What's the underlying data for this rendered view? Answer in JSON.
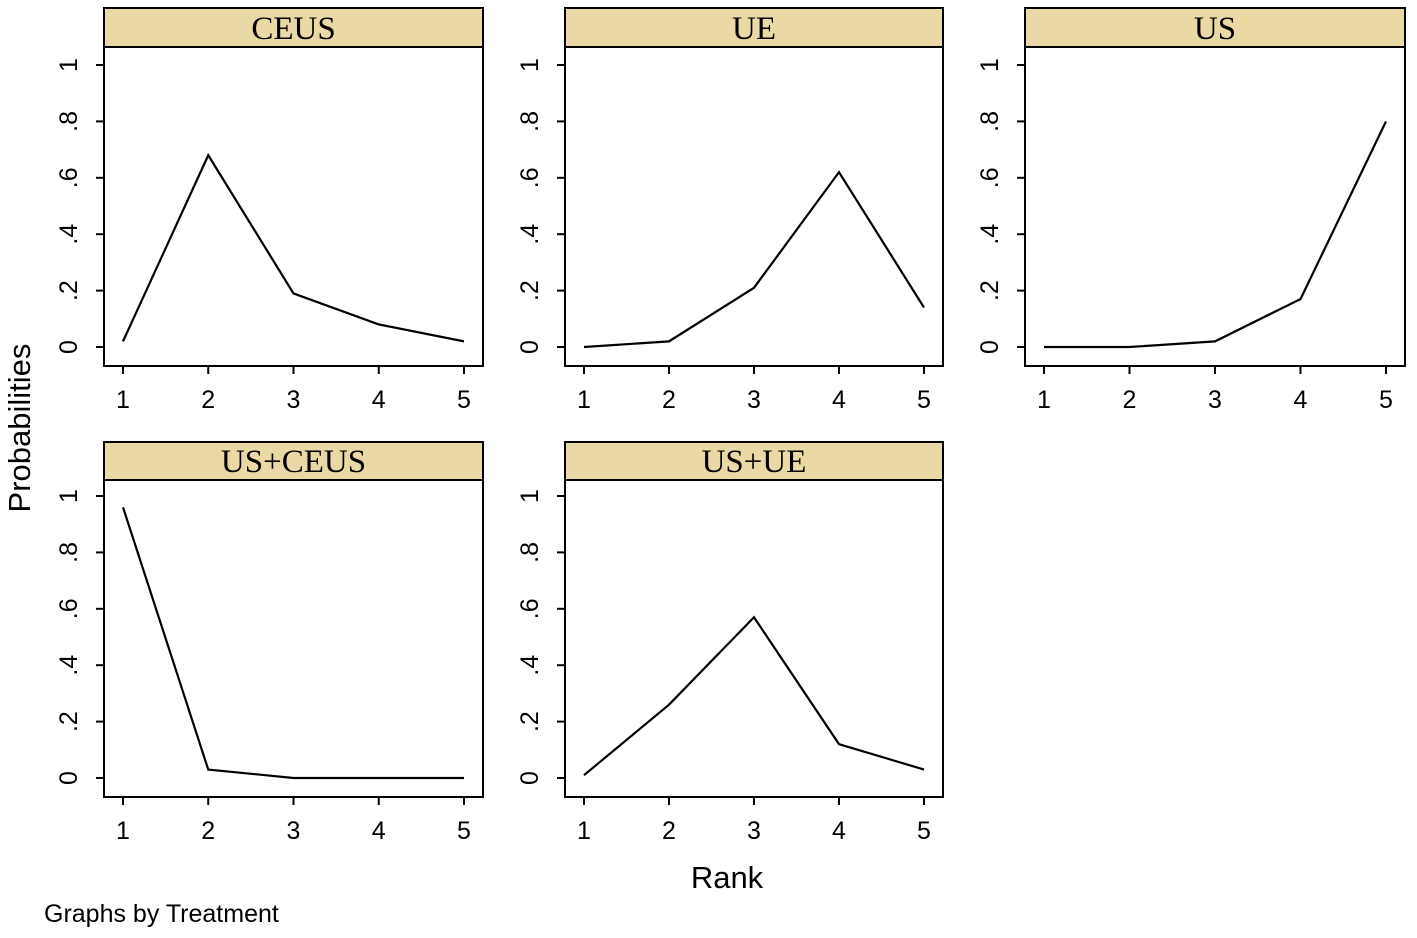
{
  "chart_data": {
    "type": "line",
    "xlabel": "Rank",
    "ylabel": "Probabilities",
    "note": "Graphs by Treatment",
    "x": [
      1,
      2,
      3,
      4,
      5
    ],
    "x_tick_labels": [
      "1",
      "2",
      "3",
      "4",
      "5"
    ],
    "y_ticks": [
      0,
      0.2,
      0.4,
      0.6,
      0.8,
      1
    ],
    "y_tick_labels": [
      "0",
      ".2",
      ".4",
      ".6",
      ".8",
      "1"
    ],
    "ylim": [
      0,
      1
    ],
    "xlim": [
      1,
      5
    ],
    "grid": false,
    "colors": {
      "header_fill": "#ead9a4",
      "line": "#000000",
      "frame": "#000000"
    },
    "panels": [
      {
        "title": "CEUS",
        "values": [
          0.02,
          0.68,
          0.19,
          0.08,
          0.02
        ]
      },
      {
        "title": "UE",
        "values": [
          0.0,
          0.02,
          0.21,
          0.62,
          0.14
        ]
      },
      {
        "title": "US",
        "values": [
          0.0,
          0.0,
          0.02,
          0.17,
          0.8
        ]
      },
      {
        "title": "US+CEUS",
        "values": [
          0.96,
          0.03,
          0.0,
          0.0,
          0.0
        ]
      },
      {
        "title": "US+UE",
        "values": [
          0.01,
          0.26,
          0.57,
          0.12,
          0.03
        ]
      }
    ]
  }
}
